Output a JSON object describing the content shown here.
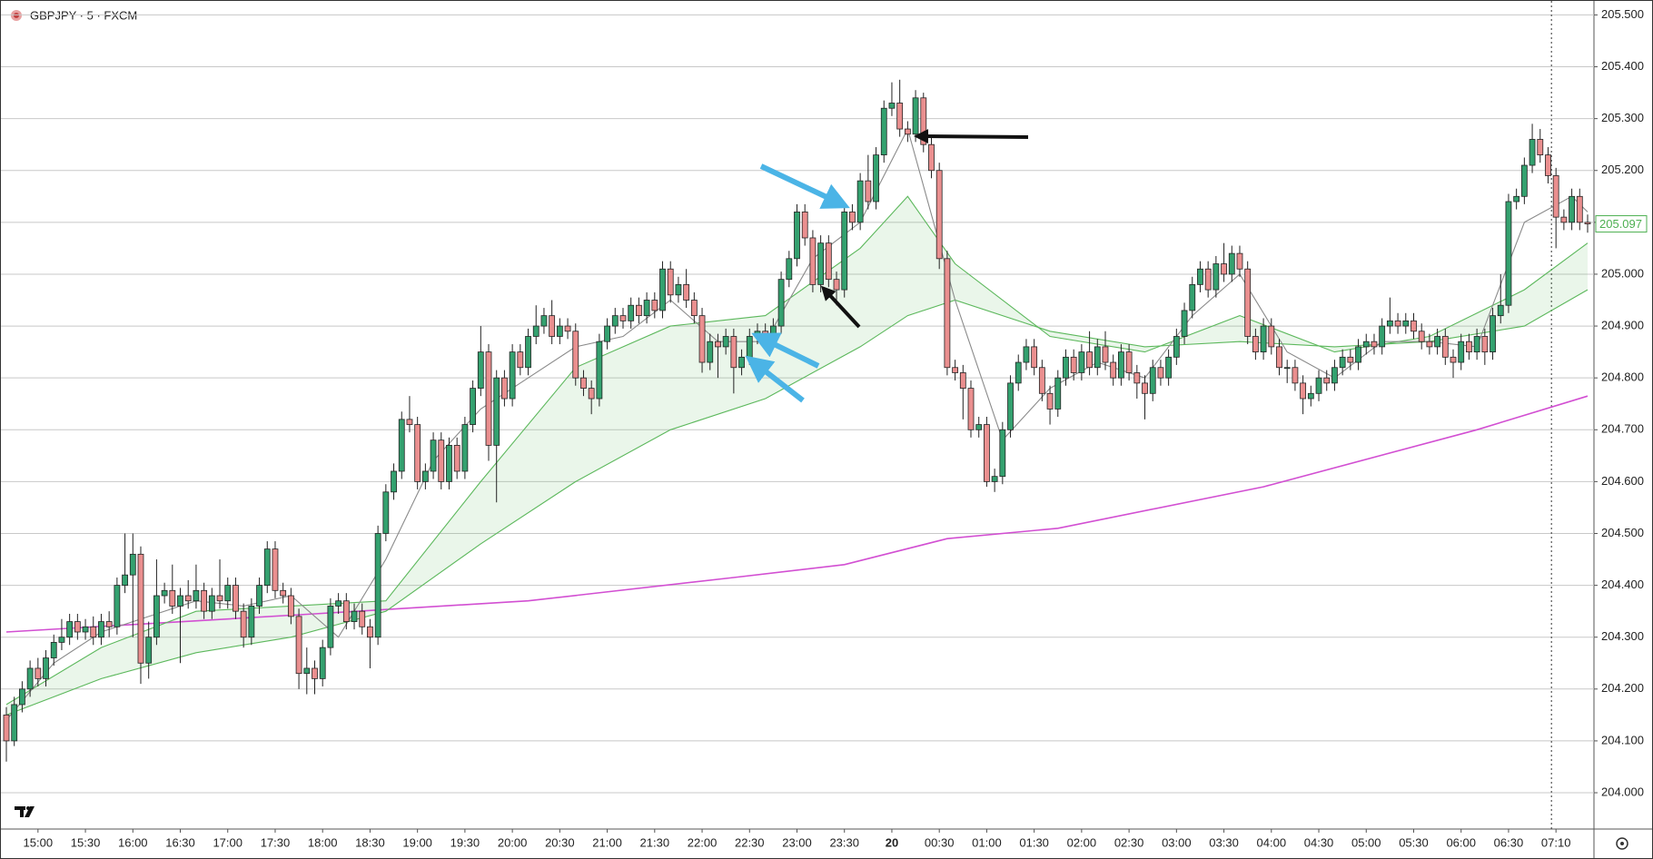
{
  "chart_data": {
    "type": "candlestick",
    "title": "GBPJPY · 5 · FXCM",
    "up_color": "#34a16f",
    "down_color": "#ea8f8f",
    "grid": true,
    "ylim": [
      203.93,
      205.52
    ],
    "yticks": [
      {
        "value": 204.0,
        "label": "204.000"
      },
      {
        "value": 204.1,
        "label": "204.100"
      },
      {
        "value": 204.2,
        "label": "204.200"
      },
      {
        "value": 204.3,
        "label": "204.300"
      },
      {
        "value": 204.4,
        "label": "204.400"
      },
      {
        "value": 204.5,
        "label": "204.500"
      },
      {
        "value": 204.6,
        "label": "204.600"
      },
      {
        "value": 204.7,
        "label": "204.700"
      },
      {
        "value": 204.8,
        "label": "204.800"
      },
      {
        "value": 204.9,
        "label": "204.900"
      },
      {
        "value": 205.0,
        "label": "205.000"
      },
      {
        "value": 205.1,
        "label": "205.100"
      },
      {
        "value": 205.2,
        "label": "205.200"
      },
      {
        "value": 205.3,
        "label": "205.300"
      },
      {
        "value": 205.4,
        "label": "205.400"
      },
      {
        "value": 205.5,
        "label": "205.500"
      }
    ],
    "xticks": [
      {
        "value": 4,
        "label": "15:00"
      },
      {
        "value": 10,
        "label": "15:30"
      },
      {
        "value": 16,
        "label": "16:00"
      },
      {
        "value": 22,
        "label": "16:30"
      },
      {
        "value": 28,
        "label": "17:00"
      },
      {
        "value": 34,
        "label": "17:30"
      },
      {
        "value": 40,
        "label": "18:00"
      },
      {
        "value": 46,
        "label": "18:30"
      },
      {
        "value": 52,
        "label": "19:00"
      },
      {
        "value": 58,
        "label": "19:30"
      },
      {
        "value": 64,
        "label": "20:00"
      },
      {
        "value": 70,
        "label": "20:30"
      },
      {
        "value": 76,
        "label": "21:00"
      },
      {
        "value": 82,
        "label": "21:30"
      },
      {
        "value": 88,
        "label": "22:00"
      },
      {
        "value": 94,
        "label": "22:30"
      },
      {
        "value": 100,
        "label": "23:00"
      },
      {
        "value": 106,
        "label": "23:30"
      },
      {
        "value": 112,
        "label": "20"
      },
      {
        "value": 118,
        "label": "00:30"
      },
      {
        "value": 124,
        "label": "01:00"
      },
      {
        "value": 130,
        "label": "01:30"
      },
      {
        "value": 136,
        "label": "02:00"
      },
      {
        "value": 142,
        "label": "02:30"
      },
      {
        "value": 148,
        "label": "03:00"
      },
      {
        "value": 154,
        "label": "03:30"
      },
      {
        "value": 160,
        "label": "04:00"
      },
      {
        "value": 166,
        "label": "04:30"
      },
      {
        "value": 172,
        "label": "05:00"
      },
      {
        "value": 178,
        "label": "05:30"
      },
      {
        "value": 184,
        "label": "06:00"
      },
      {
        "value": 190,
        "label": "06:30"
      },
      {
        "value": 196,
        "label": "07:10"
      }
    ],
    "open": [
      204.15,
      204.1,
      204.17,
      204.2,
      204.24,
      204.22,
      204.26,
      204.29,
      204.3,
      204.33,
      204.31,
      204.32,
      204.3,
      204.33,
      204.32,
      204.4,
      204.42,
      204.46,
      204.25,
      204.3,
      204.38,
      204.39,
      204.36,
      204.38,
      204.37,
      204.39,
      204.35,
      204.38,
      204.37,
      204.4,
      204.35,
      204.3,
      204.36,
      204.4,
      204.47,
      204.39,
      204.38,
      204.34,
      204.23,
      204.24,
      204.22,
      204.28,
      204.36,
      204.37,
      204.33,
      204.35,
      204.32,
      204.3,
      204.5,
      204.58,
      204.62,
      204.72,
      204.71,
      204.6,
      204.62,
      204.68,
      204.6,
      204.67,
      204.62,
      204.71,
      204.78,
      204.85,
      204.67,
      204.8,
      204.76,
      204.85,
      204.82,
      204.88,
      204.9,
      204.92,
      204.88,
      204.9,
      204.89,
      204.8,
      204.78,
      204.76,
      204.87,
      204.9,
      204.92,
      204.91,
      204.94,
      204.92,
      204.95,
      204.93,
      205.01,
      204.96,
      204.98,
      204.95,
      204.92,
      204.83,
      204.87,
      204.86,
      204.88,
      204.82,
      204.84,
      204.88,
      204.89,
      204.88,
      204.9,
      204.99,
      205.03,
      205.12,
      205.07,
      204.98,
      205.06,
      204.99,
      204.97,
      205.12,
      205.1,
      205.18,
      205.14,
      205.23,
      205.32,
      205.33,
      205.28,
      205.27,
      205.34,
      205.25,
      205.2,
      205.03,
      204.82,
      204.81,
      204.78,
      204.7,
      204.71,
      204.6,
      204.61,
      204.7,
      204.79,
      204.83,
      204.86,
      204.82,
      204.77,
      204.74,
      204.8,
      204.84,
      204.81,
      204.85,
      204.82,
      204.86,
      204.83,
      204.8,
      204.85,
      204.81,
      204.79,
      204.77,
      204.82,
      204.8,
      204.84,
      204.88,
      204.93,
      204.98,
      205.01,
      204.97,
      205.02,
      205,
      205.04,
      205.01,
      204.88,
      204.85,
      204.9,
      204.86,
      204.82,
      204.82,
      204.79,
      204.76,
      204.77,
      204.8,
      204.79,
      204.82,
      204.84,
      204.83,
      204.86,
      204.87,
      204.86,
      204.9,
      204.91,
      204.9,
      204.91,
      204.89,
      204.87,
      204.86,
      204.88,
      204.84,
      204.83,
      204.87,
      204.85,
      204.88,
      204.85,
      204.92,
      204.94,
      205.14,
      205.15,
      205.21,
      205.26,
      205.23,
      205.19,
      205.11,
      205.1,
      205.15,
      205.1
    ],
    "high": [
      204.165,
      204.185,
      204.215,
      204.255,
      204.26,
      204.275,
      204.305,
      204.335,
      204.345,
      204.345,
      204.335,
      204.34,
      204.345,
      204.35,
      204.415,
      204.5,
      204.5,
      204.475,
      204.33,
      204.45,
      204.405,
      204.44,
      204.395,
      204.41,
      204.44,
      204.405,
      204.395,
      204.45,
      204.415,
      204.415,
      204.365,
      204.375,
      204.415,
      204.485,
      204.485,
      204.405,
      204.395,
      204.355,
      204.28,
      204.255,
      204.295,
      204.375,
      204.385,
      204.385,
      204.365,
      204.365,
      204.335,
      204.515,
      204.595,
      204.635,
      204.735,
      204.765,
      204.725,
      204.635,
      204.695,
      204.695,
      204.685,
      204.685,
      204.725,
      204.795,
      204.9,
      204.865,
      204.815,
      204.815,
      204.865,
      204.865,
      204.895,
      204.94,
      204.935,
      204.95,
      204.915,
      204.915,
      204.905,
      204.815,
      204.795,
      204.885,
      204.915,
      204.935,
      204.935,
      204.955,
      204.955,
      204.965,
      204.965,
      205.025,
      205.025,
      204.995,
      205.01,
      204.965,
      204.935,
      204.885,
      204.885,
      204.895,
      204.895,
      204.855,
      204.895,
      204.905,
      204.905,
      204.915,
      205.005,
      205.045,
      205.135,
      205.135,
      205.085,
      205.075,
      205.075,
      205.005,
      205.135,
      205.135,
      205.195,
      205.23,
      205.245,
      205.335,
      205.37,
      205.375,
      205.295,
      205.355,
      205.35,
      205.265,
      205.215,
      205.045,
      204.835,
      204.825,
      204.795,
      204.725,
      204.725,
      204.625,
      204.715,
      204.805,
      204.845,
      204.875,
      204.875,
      204.835,
      204.785,
      204.815,
      204.855,
      204.855,
      204.865,
      204.89,
      204.875,
      204.89,
      204.845,
      204.865,
      204.865,
      204.825,
      204.805,
      204.835,
      204.835,
      204.855,
      204.895,
      204.945,
      204.995,
      205.025,
      205.025,
      205.035,
      205.06,
      205.055,
      205.055,
      205.025,
      204.895,
      204.915,
      204.915,
      204.875,
      204.835,
      204.835,
      204.805,
      204.785,
      204.815,
      204.815,
      204.835,
      204.855,
      204.855,
      204.875,
      204.885,
      204.885,
      204.915,
      204.955,
      204.925,
      204.925,
      204.925,
      204.905,
      204.885,
      204.895,
      204.895,
      204.855,
      204.885,
      204.885,
      204.895,
      204.895,
      204.935,
      205,
      205.155,
      205.165,
      205.225,
      205.29,
      205.28,
      205.245,
      205.205,
      205.125,
      205.165,
      205.165,
      205.115
    ],
    "low": [
      204.06,
      204.09,
      204.155,
      204.185,
      204.205,
      204.205,
      204.245,
      204.275,
      204.285,
      204.295,
      204.295,
      204.285,
      204.285,
      204.3,
      204.305,
      204.385,
      204.3,
      204.21,
      204.22,
      204.285,
      204.365,
      204.345,
      204.25,
      204.355,
      204.355,
      204.335,
      204.335,
      204.355,
      204.355,
      204.335,
      204.28,
      204.285,
      204.345,
      204.385,
      204.375,
      204.365,
      204.325,
      204.2,
      204.19,
      204.19,
      204.205,
      204.265,
      204.345,
      204.315,
      204.315,
      204.305,
      204.24,
      204.285,
      204.485,
      204.565,
      204.605,
      204.695,
      204.585,
      204.585,
      204.605,
      204.585,
      204.585,
      204.605,
      204.605,
      204.695,
      204.765,
      204.64,
      204.56,
      204.745,
      204.745,
      204.805,
      204.805,
      204.865,
      204.885,
      204.865,
      204.865,
      204.875,
      204.785,
      204.765,
      204.73,
      204.745,
      204.855,
      204.885,
      204.895,
      204.895,
      204.905,
      204.905,
      204.915,
      204.915,
      204.945,
      204.945,
      204.935,
      204.905,
      204.81,
      204.815,
      204.8,
      204.845,
      204.77,
      204.805,
      204.825,
      204.865,
      204.865,
      204.865,
      204.885,
      204.975,
      205.015,
      205.055,
      204.965,
      204.965,
      204.975,
      204.94,
      204.955,
      205.085,
      205.085,
      205.125,
      205.125,
      205.215,
      205.305,
      205.265,
      205.255,
      205.255,
      205.235,
      205.185,
      205.01,
      204.805,
      204.795,
      204.72,
      204.685,
      204.685,
      204.59,
      204.58,
      204.595,
      204.685,
      204.775,
      204.815,
      204.805,
      204.755,
      204.71,
      204.725,
      204.785,
      204.795,
      204.795,
      204.805,
      204.805,
      204.815,
      204.785,
      204.785,
      204.795,
      204.76,
      204.72,
      204.755,
      204.785,
      204.785,
      204.825,
      204.865,
      204.915,
      204.965,
      204.955,
      204.955,
      204.985,
      204.985,
      204.995,
      204.865,
      204.835,
      204.835,
      204.845,
      204.805,
      204.79,
      204.775,
      204.73,
      204.745,
      204.755,
      204.775,
      204.775,
      204.805,
      204.815,
      204.815,
      204.845,
      204.845,
      204.845,
      204.885,
      204.885,
      204.885,
      204.875,
      204.855,
      204.845,
      204.845,
      204.825,
      204.8,
      204.815,
      204.835,
      204.835,
      204.825,
      204.835,
      204.905,
      204.925,
      205.125,
      205.135,
      205.195,
      205.215,
      205.175,
      205.05,
      205.085,
      205.085,
      205.085,
      205.08
    ],
    "close": [
      204.1,
      204.17,
      204.2,
      204.24,
      204.22,
      204.26,
      204.29,
      204.3,
      204.33,
      204.31,
      204.32,
      204.3,
      204.33,
      204.32,
      204.4,
      204.42,
      204.46,
      204.25,
      204.3,
      204.38,
      204.39,
      204.36,
      204.38,
      204.37,
      204.39,
      204.35,
      204.38,
      204.37,
      204.4,
      204.35,
      204.3,
      204.36,
      204.4,
      204.47,
      204.39,
      204.38,
      204.34,
      204.23,
      204.24,
      204.22,
      204.28,
      204.36,
      204.37,
      204.33,
      204.35,
      204.32,
      204.3,
      204.5,
      204.58,
      204.62,
      204.72,
      204.71,
      204.6,
      204.62,
      204.68,
      204.6,
      204.67,
      204.62,
      204.71,
      204.78,
      204.85,
      204.67,
      204.8,
      204.76,
      204.85,
      204.82,
      204.88,
      204.9,
      204.92,
      204.88,
      204.9,
      204.89,
      204.8,
      204.78,
      204.76,
      204.87,
      204.9,
      204.92,
      204.91,
      204.94,
      204.92,
      204.95,
      204.93,
      205.01,
      204.96,
      204.98,
      204.95,
      204.92,
      204.83,
      204.87,
      204.86,
      204.88,
      204.82,
      204.84,
      204.88,
      204.89,
      204.88,
      204.9,
      204.99,
      205.03,
      205.12,
      205.07,
      204.98,
      205.06,
      204.99,
      204.97,
      205.12,
      205.1,
      205.18,
      205.14,
      205.23,
      205.32,
      205.33,
      205.28,
      205.27,
      205.34,
      205.25,
      205.2,
      205.03,
      204.82,
      204.81,
      204.78,
      204.7,
      204.71,
      204.6,
      204.61,
      204.7,
      204.79,
      204.83,
      204.86,
      204.82,
      204.77,
      204.74,
      204.8,
      204.84,
      204.81,
      204.85,
      204.82,
      204.86,
      204.83,
      204.8,
      204.85,
      204.81,
      204.79,
      204.77,
      204.82,
      204.8,
      204.84,
      204.88,
      204.93,
      204.98,
      205.01,
      204.97,
      205.02,
      205,
      205.04,
      205.01,
      204.88,
      204.85,
      204.9,
      204.86,
      204.82,
      204.82,
      204.79,
      204.76,
      204.77,
      204.8,
      204.79,
      204.82,
      204.84,
      204.83,
      204.86,
      204.87,
      204.86,
      204.9,
      204.91,
      204.9,
      204.91,
      204.89,
      204.87,
      204.86,
      204.88,
      204.84,
      204.83,
      204.87,
      204.85,
      204.88,
      204.85,
      204.92,
      204.94,
      205.14,
      205.15,
      205.21,
      205.26,
      205.23,
      205.19,
      205.11,
      205.1,
      205.15,
      205.1,
      205.097
    ],
    "series": [
      {
        "color": "#d24fd2",
        "x": [
          0,
          39,
          66,
          92,
          106,
          119,
          133,
          159,
          186,
          200
        ],
        "values": [
          204.31,
          204.345,
          204.37,
          204.415,
          204.44,
          204.49,
          204.51,
          204.59,
          204.7,
          204.765
        ]
      },
      {
        "color": "#5cb85c",
        "x": [
          0,
          12,
          24,
          36,
          48,
          60,
          72,
          84,
          96,
          108,
          114,
          120,
          132,
          144,
          156,
          168,
          180,
          192,
          200
        ],
        "values": [
          204.17,
          204.28,
          204.35,
          204.36,
          204.37,
          204.6,
          204.82,
          204.9,
          204.92,
          205.05,
          205.15,
          205.02,
          204.88,
          204.85,
          204.92,
          204.85,
          204.88,
          204.97,
          205.06
        ]
      },
      {
        "color": "#5cb85c",
        "x": [
          0,
          12,
          24,
          36,
          48,
          60,
          72,
          84,
          96,
          108,
          114,
          120,
          132,
          144,
          156,
          168,
          180,
          192,
          200
        ],
        "values": [
          204.15,
          204.22,
          204.27,
          204.3,
          204.35,
          204.48,
          204.6,
          204.7,
          204.76,
          204.86,
          204.92,
          204.95,
          204.89,
          204.86,
          204.87,
          204.86,
          204.87,
          204.9,
          204.97
        ]
      },
      {
        "color": "#8a8a8a",
        "x": [
          0,
          6,
          12,
          18,
          24,
          30,
          36,
          42,
          48,
          54,
          60,
          66,
          72,
          78,
          84,
          90,
          96,
          102,
          108,
          114,
          120,
          126,
          132,
          138,
          144,
          150,
          156,
          162,
          168,
          174,
          180,
          186,
          192,
          198,
          200
        ],
        "values": [
          204.14,
          204.25,
          204.31,
          204.34,
          204.37,
          204.36,
          204.38,
          204.3,
          204.45,
          204.64,
          204.74,
          204.8,
          204.86,
          204.88,
          204.95,
          204.87,
          204.87,
          205.03,
          205.1,
          205.28,
          204.95,
          204.68,
          204.78,
          204.83,
          204.8,
          204.92,
          205.0,
          204.85,
          204.8,
          204.87,
          204.87,
          204.86,
          205.1,
          205.15,
          205.12
        ]
      }
    ]
  }
}
